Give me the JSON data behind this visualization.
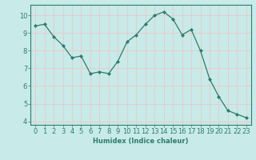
{
  "x": [
    0,
    1,
    2,
    3,
    4,
    5,
    6,
    7,
    8,
    9,
    10,
    11,
    12,
    13,
    14,
    15,
    16,
    17,
    18,
    19,
    20,
    21,
    22,
    23
  ],
  "y": [
    9.4,
    9.5,
    8.8,
    8.3,
    7.6,
    7.7,
    6.7,
    6.8,
    6.7,
    7.4,
    8.5,
    8.9,
    9.5,
    10.0,
    10.2,
    9.8,
    8.9,
    9.2,
    8.0,
    6.4,
    5.4,
    4.6,
    4.4,
    4.2
  ],
  "line_color": "#2d7d6e",
  "marker": "D",
  "marker_size": 2,
  "bg_color": "#c8eae8",
  "grid_color": "#e8c8c8",
  "xlabel": "Humidex (Indice chaleur)",
  "xlim": [
    -0.5,
    23.5
  ],
  "ylim": [
    3.8,
    10.6
  ],
  "xticks": [
    0,
    1,
    2,
    3,
    4,
    5,
    6,
    7,
    8,
    9,
    10,
    11,
    12,
    13,
    14,
    15,
    16,
    17,
    18,
    19,
    20,
    21,
    22,
    23
  ],
  "yticks": [
    4,
    5,
    6,
    7,
    8,
    9,
    10
  ],
  "label_fontsize": 6,
  "tick_fontsize": 6
}
